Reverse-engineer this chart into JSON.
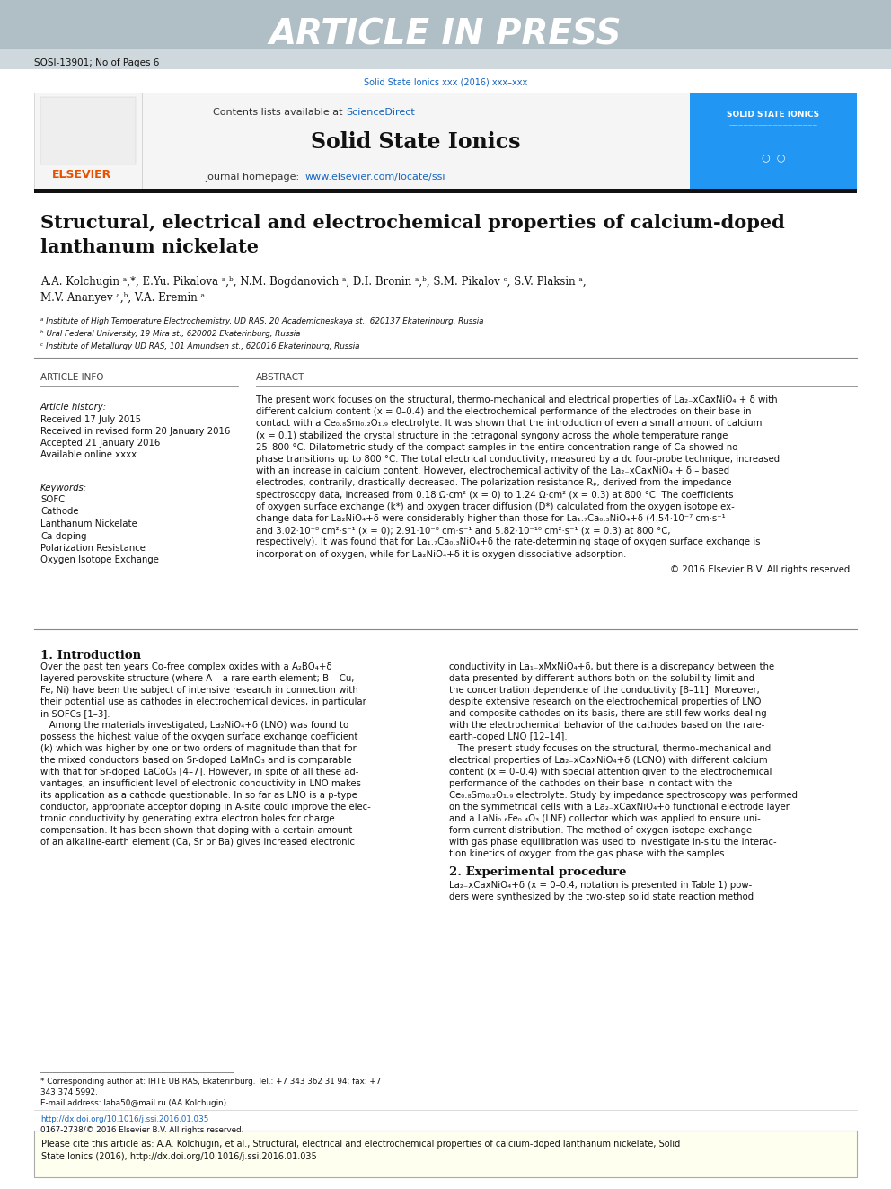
{
  "page_width": 9.92,
  "page_height": 13.23,
  "bg_color": "#ffffff",
  "header_bg": "#b0bec5",
  "header_text": "ARTICLE IN PRESS",
  "header_text_color": "#ffffff",
  "subheader_bg": "#cfd8dc",
  "subheader_text": "SOSI-13901; No of Pages 6",
  "journal_ref": "Solid State Ionics xxx (2016) xxx–xxx",
  "journal_ref_color": "#1565c0",
  "journal_name": "Solid State Ionics",
  "journal_homepage_label": "journal homepage:",
  "journal_homepage_url": "www.elsevier.com/locate/ssi",
  "contents_label": "Contents lists available at",
  "sciencedirect": "ScienceDirect",
  "elsevier_color": "#e65100",
  "link_color": "#1565c0",
  "article_title_line1": "Structural, electrical and electrochemical properties of calcium-doped",
  "article_title_line2": "lanthanum nickelate",
  "authors": "A.A. Kolchugin ᵃ,*, E.Yu. Pikalova ᵃ,ᵇ, N.M. Bogdanovich ᵃ, D.I. Bronin ᵃ,ᵇ, S.M. Pikalov ᶜ, S.V. Plaksin ᵃ,",
  "authors_line2": "M.V. Ananyev ᵃ,ᵇ, V.A. Eremin ᵃ",
  "affil_a": "ᵃ Institute of High Temperature Electrochemistry, UD RAS, 20 Academicheskaya st., 620137 Ekaterinburg, Russia",
  "affil_b": "ᵇ Ural Federal University, 19 Mira st., 620002 Ekaterinburg, Russia",
  "affil_c": "ᶜ Institute of Metallurgy UD RAS, 101 Amundsen st., 620016 Ekaterinburg, Russia",
  "section_article_info": "ARTICLE INFO",
  "section_abstract": "ABSTRACT",
  "article_history_label": "Article history:",
  "received": "Received 17 July 2015",
  "revised": "Received in revised form 20 January 2016",
  "accepted": "Accepted 21 January 2016",
  "available": "Available online xxxx",
  "keywords_label": "Keywords:",
  "keywords": [
    "SOFC",
    "Cathode",
    "Lanthanum Nickelate",
    "Ca-doping",
    "Polarization Resistance",
    "Oxygen Isotope Exchange"
  ],
  "copyright": "© 2016 Elsevier B.V. All rights reserved.",
  "intro_heading": "1. Introduction",
  "section2_heading": "2. Experimental procedure",
  "section2_text": "La₂₋xCaxNiO₄+δ (x = 0–0.4, notation is presented in Table 1) pow-\nders were synthesized by the two-step solid state reaction method",
  "footnote_star": "* Corresponding author at: IHTE UB RAS, Ekaterinburg. Tel.: +7 343 362 31 94; fax: +7",
  "footnote_star2": "343 374 5992.",
  "footnote_email": "E-mail address: laba50@mail.ru (AA Kolchugin).",
  "doi_text": "http://dx.doi.org/10.1016/j.ssi.2016.01.035",
  "issn_text": "0167-2738/© 2016 Elsevier B.V. All rights reserved.",
  "cite_box_line1": "Please cite this article as: A.A. Kolchugin, et al., Structural, electrical and electrochemical properties of calcium-doped lanthanum nickelate, Solid",
  "cite_box_line2": "State Ionics (2016), http://dx.doi.org/10.1016/j.ssi.2016.01.035",
  "cite_box_bg": "#fffff0",
  "cite_box_border": "#aaaaaa"
}
